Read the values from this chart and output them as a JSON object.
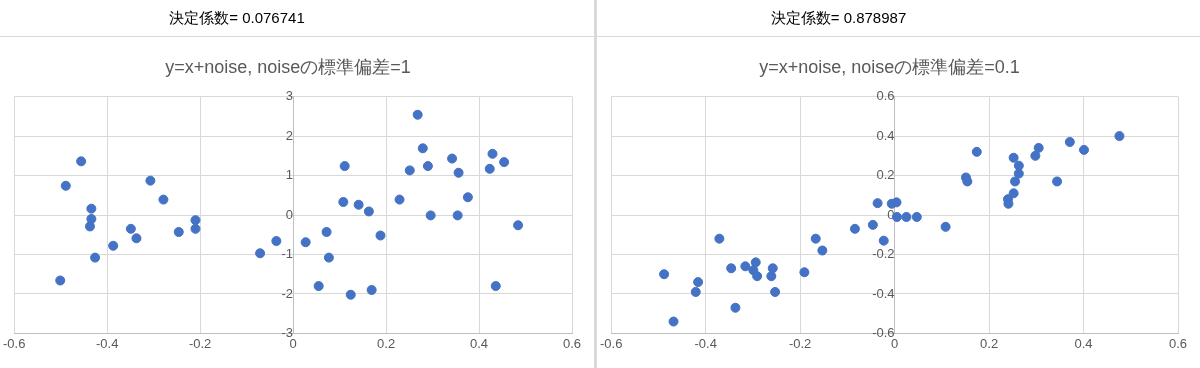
{
  "chart_data": [
    {
      "type": "scatter",
      "title": "y=x+noise, noiseの標準偏差=1",
      "annotations": [
        "決定係数= 0.076741"
      ],
      "color": "#4472c4",
      "marker": "circle",
      "grid": true,
      "legend": false,
      "xlim": [
        -0.6,
        0.6
      ],
      "xticks": [
        -0.6,
        -0.4,
        -0.2,
        0,
        0.2,
        0.4,
        0.6
      ],
      "ylim": [
        -3,
        3
      ],
      "yticks": [
        -3,
        -2,
        -1,
        0,
        1,
        2,
        3
      ],
      "x": [
        -0.456,
        -0.489,
        -0.434,
        -0.434,
        -0.437,
        -0.426,
        -0.501,
        -0.387,
        -0.349,
        -0.337,
        -0.307,
        -0.279,
        -0.246,
        -0.21,
        -0.21,
        -0.071,
        -0.036,
        0.027,
        0.072,
        0.077,
        0.055,
        0.111,
        0.108,
        0.141,
        0.163,
        0.124,
        0.169,
        0.188,
        0.229,
        0.251,
        0.268,
        0.279,
        0.29,
        0.296,
        0.342,
        0.356,
        0.354,
        0.376,
        0.423,
        0.429,
        0.454,
        0.436,
        0.484
      ],
      "values": [
        1.36,
        0.74,
        0.16,
        -0.1,
        -0.29,
        -1.08,
        -1.66,
        -0.78,
        -0.35,
        -0.59,
        0.87,
        0.39,
        -0.43,
        -0.13,
        -0.35,
        -0.97,
        -0.66,
        -0.69,
        -0.43,
        -1.08,
        -1.8,
        1.24,
        0.33,
        0.26,
        0.09,
        -2.02,
        -1.9,
        -0.52,
        0.39,
        1.13,
        2.54,
        1.69,
        1.24,
        -0.01,
        1.43,
        1.07,
        -0.01,
        0.45,
        1.17,
        1.55,
        1.34,
        -1.8,
        -0.26
      ]
    },
    {
      "type": "scatter",
      "title": "y=x+noise, noiseの標準偏差=0.1",
      "annotations": [
        "決定係数= 0.878987"
      ],
      "color": "#4472c4",
      "marker": "circle",
      "grid": true,
      "legend": false,
      "xlim": [
        -0.6,
        0.6
      ],
      "xticks": [
        -0.6,
        -0.4,
        -0.2,
        0,
        0.2,
        0.4,
        0.6
      ],
      "ylim": [
        -0.6,
        0.6
      ],
      "yticks": [
        -0.6,
        -0.4,
        -0.2,
        0,
        0.2,
        0.4,
        0.6
      ],
      "x": [
        -0.488,
        -0.468,
        -0.421,
        -0.416,
        -0.371,
        -0.346,
        -0.337,
        -0.316,
        -0.294,
        -0.299,
        -0.291,
        -0.261,
        -0.258,
        -0.253,
        -0.191,
        -0.167,
        -0.153,
        -0.084,
        -0.046,
        -0.036,
        -0.023,
        -0.006,
        0.004,
        0.005,
        0.025,
        0.047,
        0.108,
        0.151,
        0.154,
        0.174,
        0.24,
        0.241,
        0.252,
        0.252,
        0.255,
        0.263,
        0.263,
        0.298,
        0.305,
        0.344,
        0.371,
        0.401,
        0.476
      ],
      "values": [
        -0.3,
        -0.54,
        -0.39,
        -0.34,
        -0.12,
        -0.27,
        -0.47,
        -0.26,
        -0.24,
        -0.28,
        -0.31,
        -0.31,
        -0.27,
        -0.39,
        -0.29,
        -0.12,
        -0.18,
        -0.07,
        -0.05,
        0.06,
        -0.13,
        0.057,
        0.064,
        -0.01,
        -0.01,
        -0.01,
        -0.06,
        0.19,
        0.17,
        0.32,
        0.08,
        0.057,
        0.11,
        0.29,
        0.17,
        0.25,
        0.21,
        0.3,
        0.34,
        0.17,
        0.37,
        0.33,
        0.4
      ]
    }
  ]
}
